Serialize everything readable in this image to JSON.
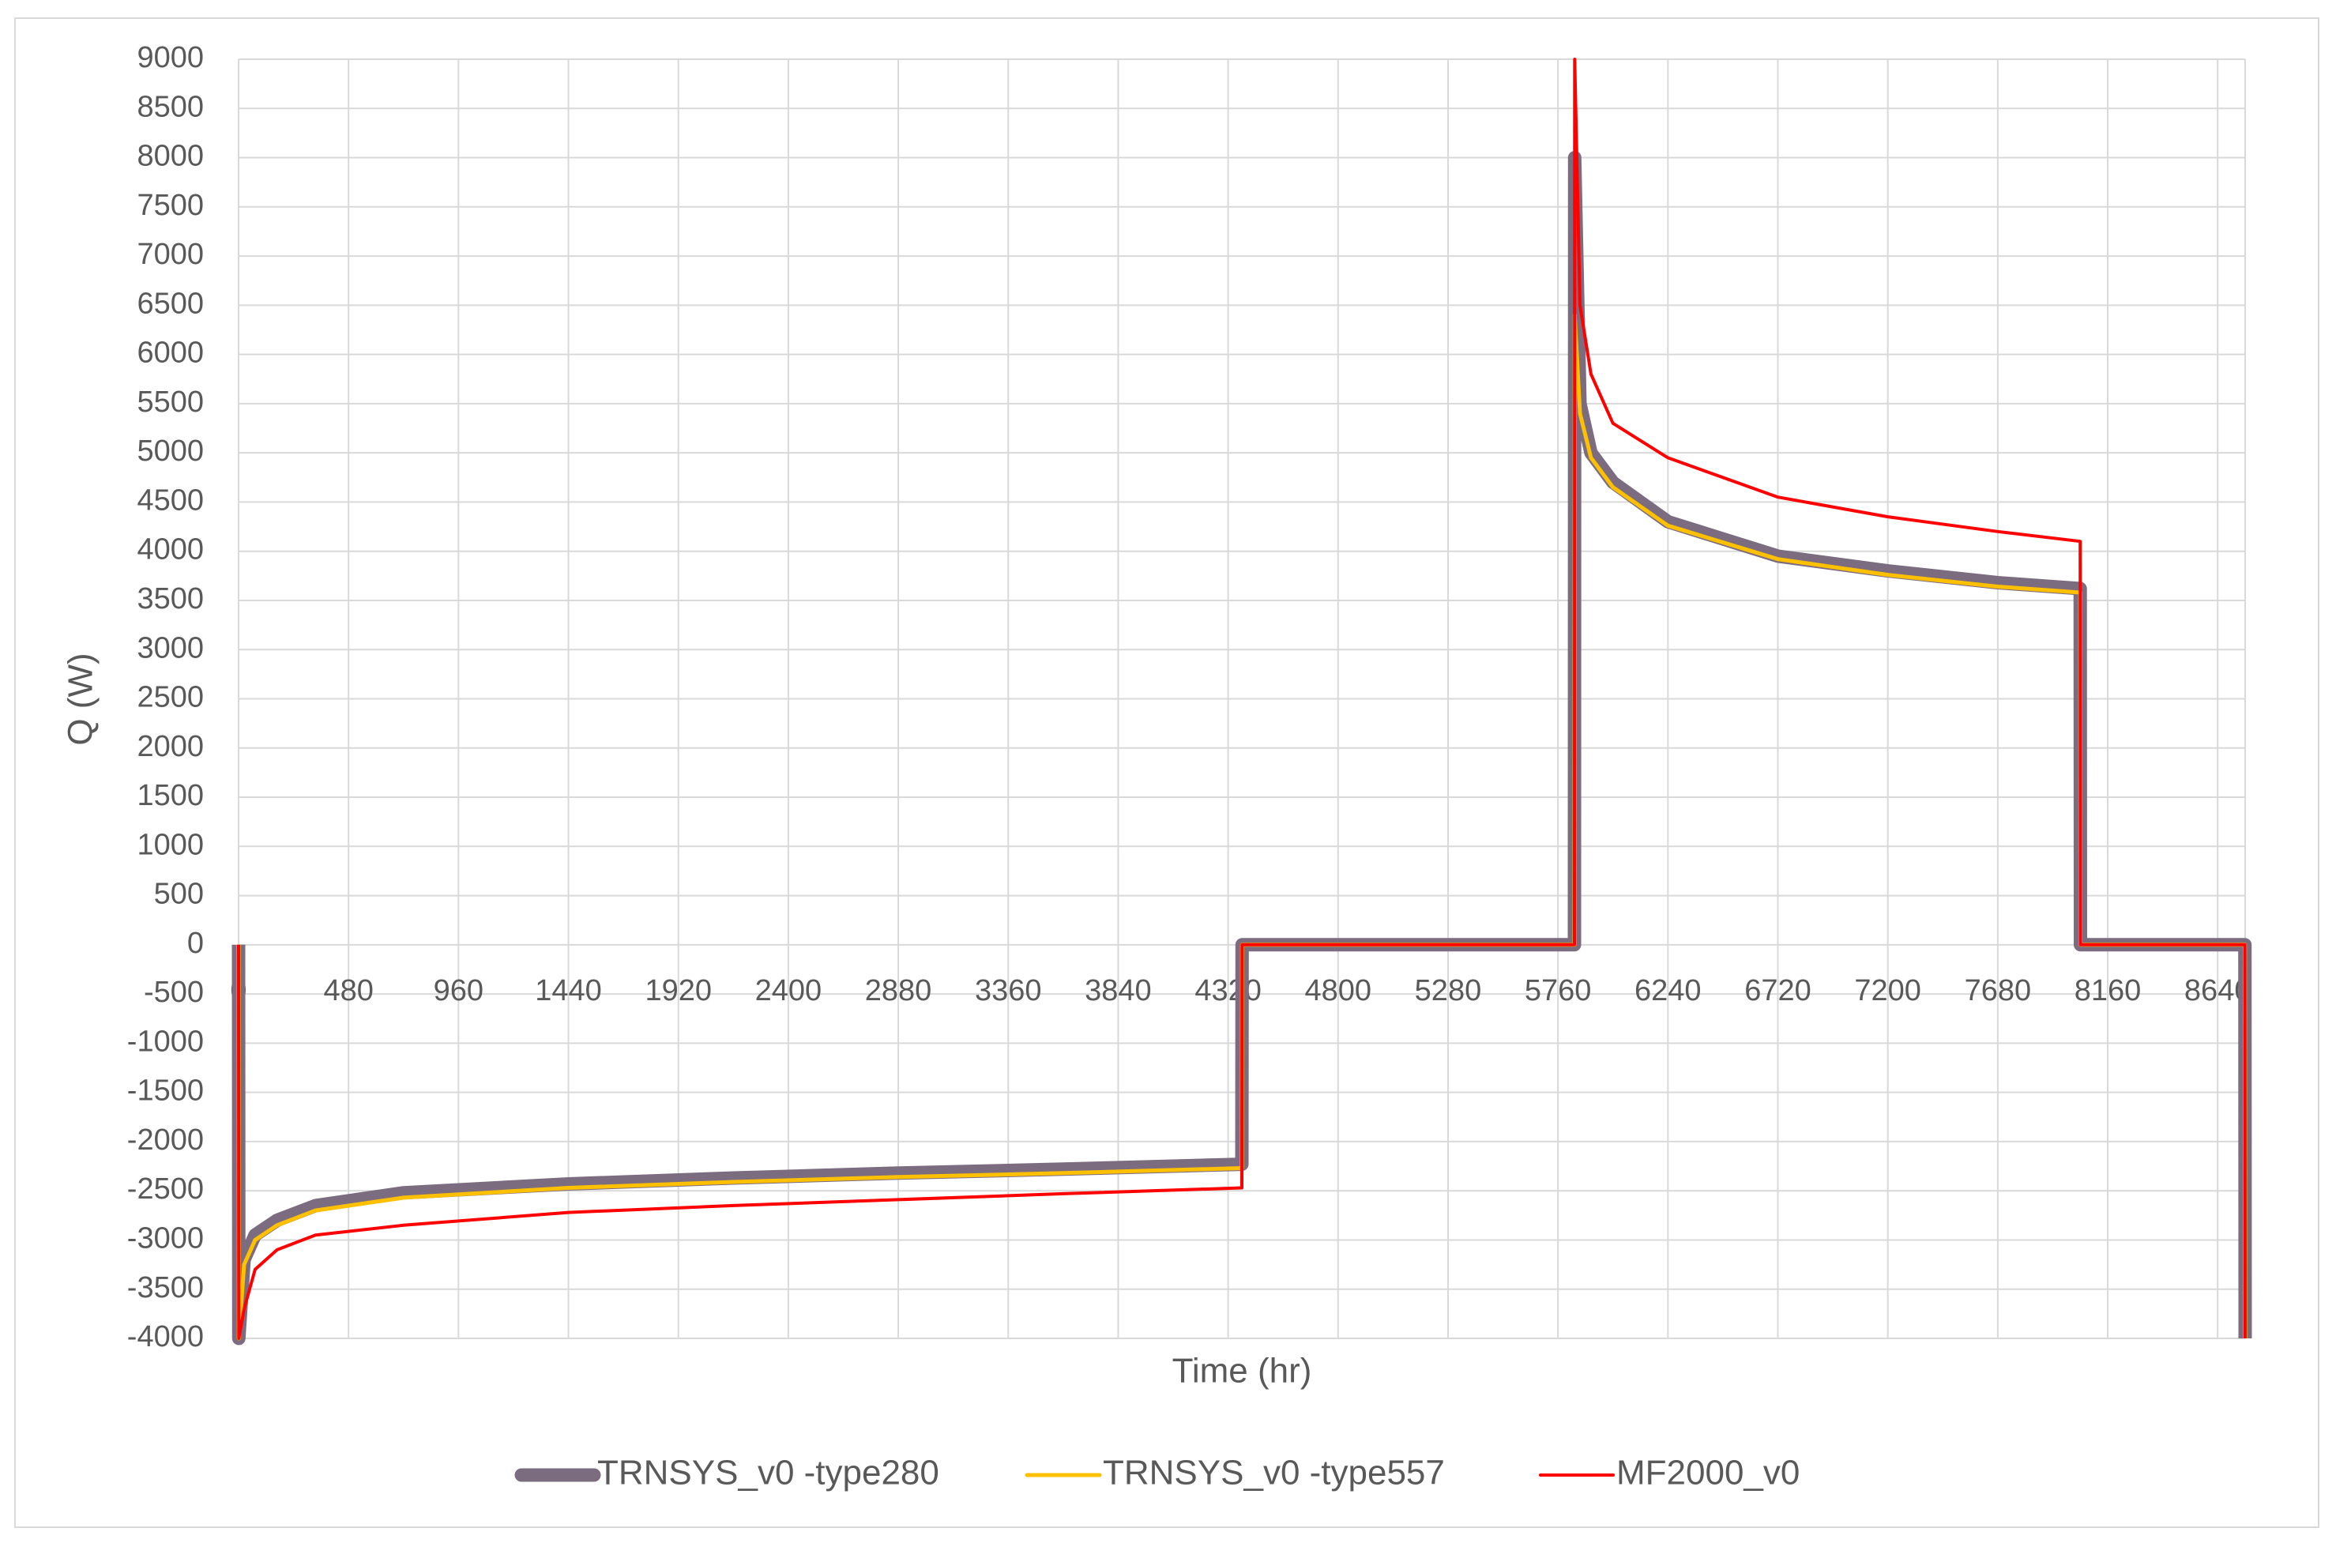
{
  "chart_data": {
    "type": "line",
    "x_label": "Time (hr)",
    "y_label": "Q (W)",
    "x": [
      0,
      1,
      24,
      72,
      168,
      336,
      720,
      1440,
      2160,
      2880,
      3600,
      4380,
      4381,
      5832,
      5833,
      5856,
      5904,
      6000,
      6240,
      6720,
      7200,
      7680,
      8040,
      8041,
      8759,
      8760
    ],
    "series": [
      {
        "name": "TRNSYS_v0 -type280",
        "color": "#7b6c80",
        "width": 17,
        "values": [
          0,
          -4000,
          -3200,
          -2950,
          -2800,
          -2650,
          -2520,
          -2430,
          -2370,
          -2320,
          -2280,
          -2230,
          0,
          0,
          8000,
          5500,
          5000,
          4700,
          4300,
          3950,
          3800,
          3680,
          3620,
          0,
          0,
          -4000
        ]
      },
      {
        "name": "TRNSYS_v0 -type557",
        "color": "#ffc000",
        "width": 5,
        "values": [
          0,
          -4000,
          -3250,
          -3000,
          -2850,
          -2700,
          -2570,
          -2470,
          -2410,
          -2360,
          -2320,
          -2270,
          0,
          0,
          6400,
          5400,
          4950,
          4650,
          4260,
          3920,
          3760,
          3640,
          3580,
          0,
          0,
          -4000
        ]
      },
      {
        "name": "MF2000_v0",
        "color": "#ff0000",
        "width": 4,
        "values": [
          0,
          -4000,
          -3700,
          -3300,
          -3100,
          -2950,
          -2850,
          -2720,
          -2650,
          -2590,
          -2530,
          -2470,
          0,
          0,
          9000,
          6500,
          5800,
          5300,
          4950,
          4550,
          4350,
          4200,
          4100,
          0,
          0,
          -4000
        ]
      }
    ],
    "xlim": [
      0,
      8760
    ],
    "ylim": [
      -4000,
      9000
    ],
    "xticks": [
      0,
      480,
      960,
      1440,
      1920,
      2400,
      2880,
      3360,
      3840,
      4320,
      4800,
      5280,
      5760,
      6240,
      6720,
      7200,
      7680,
      8160,
      8640
    ],
    "yticks": [
      -4000,
      -3500,
      -3000,
      -2500,
      -2000,
      -1500,
      -1000,
      -500,
      0,
      500,
      1000,
      1500,
      2000,
      2500,
      3000,
      3500,
      4000,
      4500,
      5000,
      5500,
      6000,
      6500,
      7000,
      7500,
      8000,
      8500,
      9000
    ],
    "grid": true,
    "legend": "bottom"
  }
}
